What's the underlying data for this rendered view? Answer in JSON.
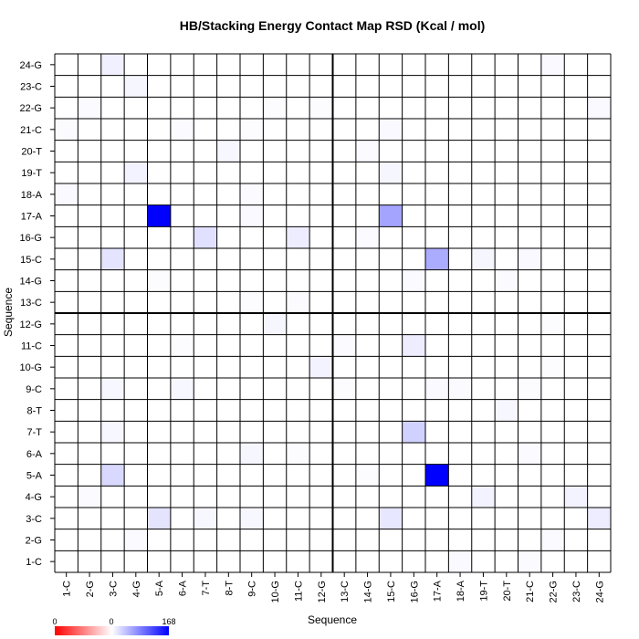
{
  "chart_data": {
    "type": "heatmap",
    "title": "HB/Stacking Energy Contact Map RSD (Kcal / mol)",
    "xlabel": "Sequence",
    "ylabel": "Sequence",
    "sequence": [
      "1-C",
      "2-G",
      "3-C",
      "4-G",
      "5-A",
      "6-A",
      "7-T",
      "8-T",
      "9-C",
      "10-G",
      "11-C",
      "12-G",
      "13-C",
      "14-G",
      "15-C",
      "16-G",
      "17-A",
      "18-A",
      "19-T",
      "20-T",
      "21-C",
      "22-G",
      "23-C",
      "24-G"
    ],
    "colorbar": {
      "min_label": "0",
      "mid_label": "0",
      "max_label": "168",
      "range": [
        0,
        168
      ],
      "low_color": "#ff0000",
      "mid_color": "#ffffff",
      "high_color": "#0000ff"
    },
    "divider_after_index": 12,
    "cells": [
      {
        "x": "5-A",
        "y": "17-A",
        "value": 168
      },
      {
        "x": "17-A",
        "y": "5-A",
        "value": 168
      },
      {
        "x": "15-C",
        "y": "17-A",
        "value": 60
      },
      {
        "x": "17-A",
        "y": "15-C",
        "value": 55
      },
      {
        "x": "16-G",
        "y": "7-T",
        "value": 30
      },
      {
        "x": "7-T",
        "y": "16-G",
        "value": 20
      },
      {
        "x": "3-C",
        "y": "5-A",
        "value": 25
      },
      {
        "x": "3-C",
        "y": "15-C",
        "value": 18
      },
      {
        "x": "5-A",
        "y": "3-C",
        "value": 18
      },
      {
        "x": "15-C",
        "y": "3-C",
        "value": 16
      },
      {
        "x": "16-G",
        "y": "11-C",
        "value": 12
      },
      {
        "x": "11-C",
        "y": "16-G",
        "value": 12
      },
      {
        "x": "3-C",
        "y": "24-G",
        "value": 10
      },
      {
        "x": "24-G",
        "y": "3-C",
        "value": 12
      },
      {
        "x": "4-G",
        "y": "19-T",
        "value": 8
      },
      {
        "x": "19-T",
        "y": "4-G",
        "value": 8
      },
      {
        "x": "4-G",
        "y": "23-C",
        "value": 6
      },
      {
        "x": "23-C",
        "y": "4-G",
        "value": 8
      },
      {
        "x": "10-G",
        "y": "12-G",
        "value": 6
      },
      {
        "x": "12-G",
        "y": "10-G",
        "value": 8
      },
      {
        "x": "9-C",
        "y": "6-A",
        "value": 6
      },
      {
        "x": "6-A",
        "y": "9-C",
        "value": 5
      },
      {
        "x": "19-T",
        "y": "15-C",
        "value": 6
      },
      {
        "x": "15-C",
        "y": "19-T",
        "value": 6
      },
      {
        "x": "8-T",
        "y": "20-T",
        "value": 5
      },
      {
        "x": "20-T",
        "y": "8-T",
        "value": 5
      },
      {
        "x": "9-C",
        "y": "3-C",
        "value": 5
      },
      {
        "x": "3-C",
        "y": "9-C",
        "value": 5
      },
      {
        "x": "7-T",
        "y": "3-C",
        "value": 5
      },
      {
        "x": "3-C",
        "y": "7-T",
        "value": 5
      },
      {
        "x": "21-C",
        "y": "15-C",
        "value": 4
      },
      {
        "x": "15-C",
        "y": "21-C",
        "value": 4
      },
      {
        "x": "22-G",
        "y": "24-G",
        "value": 4
      },
      {
        "x": "24-G",
        "y": "22-G",
        "value": 4
      },
      {
        "x": "1-C",
        "y": "18-A",
        "value": 4
      },
      {
        "x": "18-A",
        "y": "1-C",
        "value": 4
      },
      {
        "x": "1-C",
        "y": "21-C",
        "value": 3
      },
      {
        "x": "21-C",
        "y": "1-C",
        "value": 3
      },
      {
        "x": "9-C",
        "y": "17-A",
        "value": 4
      },
      {
        "x": "17-A",
        "y": "9-C",
        "value": 4
      },
      {
        "x": "2-G",
        "y": "22-G",
        "value": 3
      },
      {
        "x": "22-G",
        "y": "2-G",
        "value": 3
      },
      {
        "x": "14-G",
        "y": "20-T",
        "value": 3
      },
      {
        "x": "20-T",
        "y": "14-G",
        "value": 3
      },
      {
        "x": "6-A",
        "y": "21-C",
        "value": 3
      },
      {
        "x": "21-C",
        "y": "6-A",
        "value": 3
      },
      {
        "x": "11-C",
        "y": "13-C",
        "value": 3
      },
      {
        "x": "13-C",
        "y": "11-C",
        "value": 3
      },
      {
        "x": "16-G",
        "y": "14-G",
        "value": 3
      },
      {
        "x": "14-G",
        "y": "16-G",
        "value": 3
      },
      {
        "x": "18-A",
        "y": "9-C",
        "value": 3
      },
      {
        "x": "9-C",
        "y": "18-A",
        "value": 3
      },
      {
        "x": "4-G",
        "y": "2-G",
        "value": 3
      },
      {
        "x": "2-G",
        "y": "4-G",
        "value": 3
      },
      {
        "x": "12-G",
        "y": "22-G",
        "value": 2
      },
      {
        "x": "22-G",
        "y": "12-G",
        "value": 2
      },
      {
        "x": "21-C",
        "y": "9-C",
        "value": 2
      },
      {
        "x": "9-C",
        "y": "21-C",
        "value": 2
      },
      {
        "x": "22-G",
        "y": "10-G",
        "value": 2
      },
      {
        "x": "10-G",
        "y": "22-G",
        "value": 2
      },
      {
        "x": "11-C",
        "y": "6-A",
        "value": 2
      },
      {
        "x": "6-A",
        "y": "11-C",
        "value": 2
      },
      {
        "x": "5-A",
        "y": "14-G",
        "value": 2
      },
      {
        "x": "14-G",
        "y": "5-A",
        "value": 2
      },
      {
        "x": "13-C",
        "y": "9-C",
        "value": 2
      },
      {
        "x": "9-C",
        "y": "13-C",
        "value": 2
      }
    ]
  }
}
